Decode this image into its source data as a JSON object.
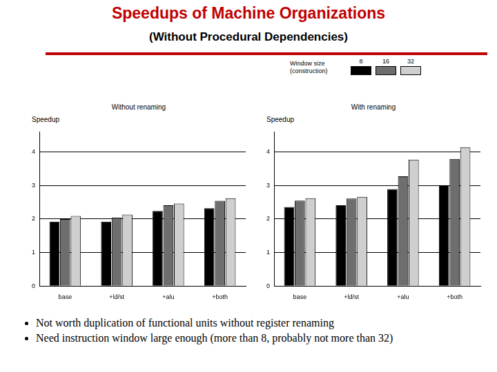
{
  "title": "Speedups of Machine Organizations",
  "subtitle": "(Without Procedural Dependencies)",
  "legend_title": "Window size (construction)",
  "bullets": [
    "Not worth duplication of functional units without register renaming",
    "Need instruction window large enough (more than 8, probably not more than 32)"
  ],
  "chart_data": [
    {
      "type": "bar",
      "title": "Without renaming",
      "y_label": "Speedup",
      "categories": [
        "base",
        "+ld/st",
        "+alu",
        "+both"
      ],
      "series": [
        {
          "name": "8",
          "color": "#000000",
          "values": [
            1.92,
            1.92,
            2.24,
            2.32
          ]
        },
        {
          "name": "16",
          "color": "#6e6e6e",
          "values": [
            2.0,
            2.04,
            2.41,
            2.54
          ]
        },
        {
          "name": "32",
          "color": "#cfcfcf",
          "values": [
            2.09,
            2.13,
            2.46,
            2.62
          ]
        }
      ],
      "ylim": [
        0,
        4.6
      ],
      "yticks": [
        0,
        1,
        2,
        3,
        4
      ],
      "grid": true
    },
    {
      "type": "bar",
      "title": "With renaming",
      "y_label": "Speedup",
      "categories": [
        "base",
        "+ld/st",
        "+alu",
        "+both"
      ],
      "series": [
        {
          "name": "8",
          "color": "#000000",
          "values": [
            2.36,
            2.41,
            2.89,
            3.01
          ]
        },
        {
          "name": "16",
          "color": "#6e6e6e",
          "values": [
            2.55,
            2.61,
            3.27,
            3.79
          ]
        },
        {
          "name": "32",
          "color": "#cfcfcf",
          "values": [
            2.62,
            2.66,
            3.77,
            4.14
          ]
        }
      ],
      "ylim": [
        0,
        4.6
      ],
      "yticks": [
        0,
        1,
        2,
        3,
        4
      ],
      "grid": true
    }
  ]
}
